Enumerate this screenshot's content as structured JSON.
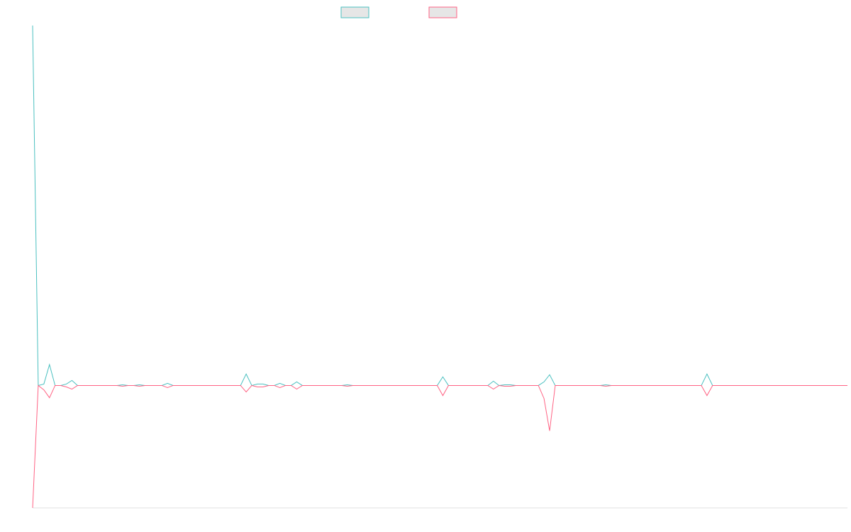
{
  "chart_data": {
    "type": "line",
    "title": "",
    "xlabel": "",
    "ylabel": "",
    "grid": false,
    "legend_position": "top-center",
    "x_count": 146,
    "ylim": [
      -170,
      500
    ],
    "series": [
      {
        "name": "",
        "color": "#4bc0c0",
        "legend_fill": "#e6e6e6",
        "values": [
          500,
          0,
          2,
          29,
          0,
          0,
          2,
          7,
          0,
          0,
          0,
          0,
          0,
          0,
          0,
          0,
          1,
          0,
          0,
          1,
          0,
          0,
          0,
          0,
          3,
          0,
          0,
          0,
          0,
          0,
          0,
          0,
          0,
          0,
          0,
          0,
          0,
          0,
          16,
          0,
          2,
          2,
          0,
          0,
          3,
          0,
          0,
          5,
          0,
          0,
          0,
          0,
          0,
          0,
          0,
          0,
          1,
          0,
          0,
          0,
          0,
          0,
          0,
          0,
          0,
          0,
          0,
          0,
          0,
          0,
          0,
          0,
          0,
          12,
          0,
          0,
          0,
          0,
          0,
          0,
          0,
          0,
          6,
          0,
          1,
          1,
          0,
          0,
          0,
          0,
          0,
          5,
          15,
          0,
          0,
          0,
          0,
          0,
          0,
          0,
          0,
          0,
          1,
          0,
          0,
          0,
          0,
          0,
          0,
          0,
          0,
          0,
          0,
          0,
          0,
          0,
          0,
          0,
          0,
          0,
          16,
          0,
          0,
          0,
          0,
          0,
          0,
          0,
          0,
          0,
          0,
          0,
          0,
          0,
          0,
          0,
          0,
          0,
          0,
          0,
          0,
          0,
          0,
          0,
          0,
          0
        ]
      },
      {
        "name": "",
        "color": "#ff6384",
        "legend_fill": "#e6e6e6",
        "values": [
          -170,
          0,
          -6,
          -17,
          0,
          0,
          -2,
          -5,
          0,
          0,
          0,
          0,
          0,
          0,
          0,
          0,
          -1,
          0,
          0,
          -1,
          0,
          0,
          0,
          0,
          -3,
          0,
          0,
          0,
          0,
          0,
          0,
          0,
          0,
          0,
          0,
          0,
          0,
          0,
          -9,
          0,
          -2,
          -2,
          0,
          0,
          -3,
          0,
          0,
          -5,
          0,
          0,
          0,
          0,
          0,
          0,
          0,
          0,
          -1,
          0,
          0,
          0,
          0,
          0,
          0,
          0,
          0,
          0,
          0,
          0,
          0,
          0,
          0,
          0,
          0,
          -14,
          0,
          0,
          0,
          0,
          0,
          0,
          0,
          0,
          -5,
          0,
          -1,
          -1,
          0,
          0,
          0,
          0,
          0,
          -18,
          -63,
          0,
          0,
          0,
          0,
          0,
          0,
          0,
          0,
          0,
          -1,
          0,
          0,
          0,
          0,
          0,
          0,
          0,
          0,
          0,
          0,
          0,
          0,
          0,
          0,
          0,
          0,
          0,
          -14,
          0,
          0,
          0,
          0,
          0,
          0,
          0,
          0,
          0,
          0,
          0,
          0,
          0,
          0,
          0,
          0,
          0,
          0,
          0,
          0,
          0,
          0,
          0,
          0,
          0
        ]
      }
    ]
  }
}
